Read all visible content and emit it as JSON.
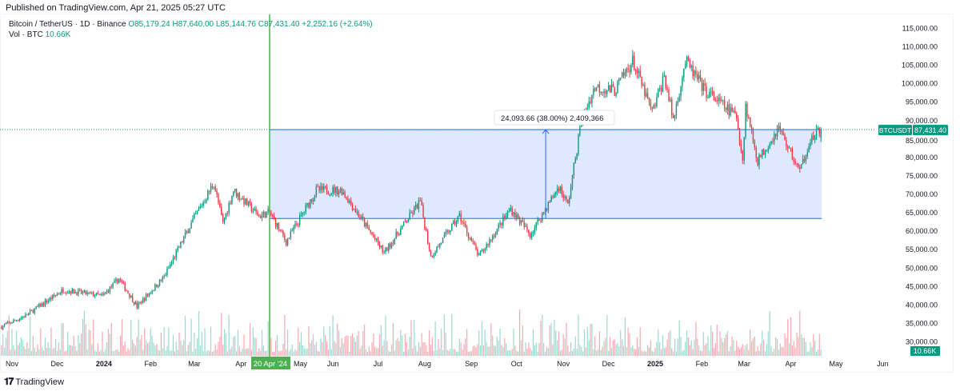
{
  "published": "Published on TradingView.com, Apr 21, 2025 05:27 UTC",
  "legend": {
    "symbol": "Bitcoin / TetherUS · 1D · Binance",
    "open": "O85,179.24",
    "high": "H87,640.00",
    "low": "L85,144.76",
    "close": "C87,431.40",
    "change": "+2,252.16 (+2.64%)",
    "vol_label": "Vol · BTC",
    "vol_value": "10.66K"
  },
  "colors": {
    "up": "#089981",
    "down": "#f23645",
    "measure": "#2962ff",
    "crosshair": "#4caf50"
  },
  "price_badge": {
    "symbol": "BTCUSDT",
    "value": "87,431.40"
  },
  "vol_badge": "10.66K",
  "crosshair_label": "20 Apr '24",
  "measure_label": "24,093.66 (38.00%) 2,409,366",
  "footer": {
    "brand": "TradingView"
  },
  "chart_data": {
    "type": "candlestick",
    "title": "Bitcoin / TetherUS · 1D · Binance",
    "y_ticks": [
      "115,000.00",
      "110,000.00",
      "105,000.00",
      "100,000.00",
      "95,000.00",
      "90,000.00",
      "85,000.00",
      "80,000.00",
      "75,000.00",
      "70,000.00",
      "65,000.00",
      "60,000.00",
      "55,000.00",
      "50,000.00",
      "45,000.00",
      "40,000.00",
      "35,000.00",
      "30,000.00"
    ],
    "ylim": [
      30000,
      115000
    ],
    "x_ticks": [
      {
        "label": "Nov",
        "date": "2023-11-01"
      },
      {
        "label": "Dec",
        "date": "2023-12-01"
      },
      {
        "label": "2024",
        "date": "2024-01-01"
      },
      {
        "label": "Feb",
        "date": "2024-02-01"
      },
      {
        "label": "Mar",
        "date": "2024-03-01"
      },
      {
        "label": "Apr",
        "date": "2024-04-01"
      },
      {
        "label": "May",
        "date": "2024-05-01"
      },
      {
        "label": "Jun",
        "date": "2024-06-01"
      },
      {
        "label": "Jul",
        "date": "2024-07-01"
      },
      {
        "label": "Aug",
        "date": "2024-08-01"
      },
      {
        "label": "Sep",
        "date": "2024-09-01"
      },
      {
        "label": "Oct",
        "date": "2024-10-01"
      },
      {
        "label": "Nov",
        "date": "2024-11-01"
      },
      {
        "label": "Dec",
        "date": "2024-12-01"
      },
      {
        "label": "2025",
        "date": "2025-01-01"
      },
      {
        "label": "Feb",
        "date": "2025-02-01"
      },
      {
        "label": "Mar",
        "date": "2025-03-01"
      },
      {
        "label": "Apr",
        "date": "2025-04-01"
      },
      {
        "label": "May",
        "date": "2025-05-01"
      },
      {
        "label": "Jun",
        "date": "2025-06-01"
      }
    ],
    "close_path": [
      [
        "2023-10-25",
        34000
      ],
      [
        "2023-11-10",
        37000
      ],
      [
        "2023-12-05",
        44000
      ],
      [
        "2023-12-31",
        42300
      ],
      [
        "2024-01-11",
        47000
      ],
      [
        "2024-01-23",
        39500
      ],
      [
        "2024-02-10",
        47500
      ],
      [
        "2024-02-28",
        62000
      ],
      [
        "2024-03-14",
        73000
      ],
      [
        "2024-03-20",
        62000
      ],
      [
        "2024-03-27",
        71000
      ],
      [
        "2024-04-13",
        64000
      ],
      [
        "2024-04-20",
        65000
      ],
      [
        "2024-05-01",
        57000
      ],
      [
        "2024-05-21",
        71000
      ],
      [
        "2024-06-07",
        71000
      ],
      [
        "2024-07-05",
        54000
      ],
      [
        "2024-07-29",
        68000
      ],
      [
        "2024-08-05",
        53000
      ],
      [
        "2024-08-24",
        64000
      ],
      [
        "2024-09-06",
        53000
      ],
      [
        "2024-09-27",
        66000
      ],
      [
        "2024-10-10",
        59000
      ],
      [
        "2024-10-29",
        72000
      ],
      [
        "2024-11-04",
        67000
      ],
      [
        "2024-11-13",
        90000
      ],
      [
        "2024-11-22",
        99000
      ],
      [
        "2024-12-05",
        98000
      ],
      [
        "2024-12-17",
        106000
      ],
      [
        "2024-12-30",
        92000
      ],
      [
        "2025-01-07",
        102000
      ],
      [
        "2025-01-13",
        90000
      ],
      [
        "2025-01-21",
        106000
      ],
      [
        "2025-02-03",
        98000
      ],
      [
        "2025-02-24",
        91000
      ],
      [
        "2025-02-28",
        79000
      ],
      [
        "2025-03-02",
        94000
      ],
      [
        "2025-03-10",
        79000
      ],
      [
        "2025-03-24",
        88000
      ],
      [
        "2025-04-07",
        76000
      ],
      [
        "2025-04-13",
        84000
      ],
      [
        "2025-04-21",
        87431.4
      ]
    ],
    "measure": {
      "from_date": "2024-04-20",
      "to_date": "2025-04-21",
      "low": 63338,
      "high": 87431.4,
      "change": 24093.66,
      "percent": 38.0
    },
    "last_volume": "10.66K"
  }
}
